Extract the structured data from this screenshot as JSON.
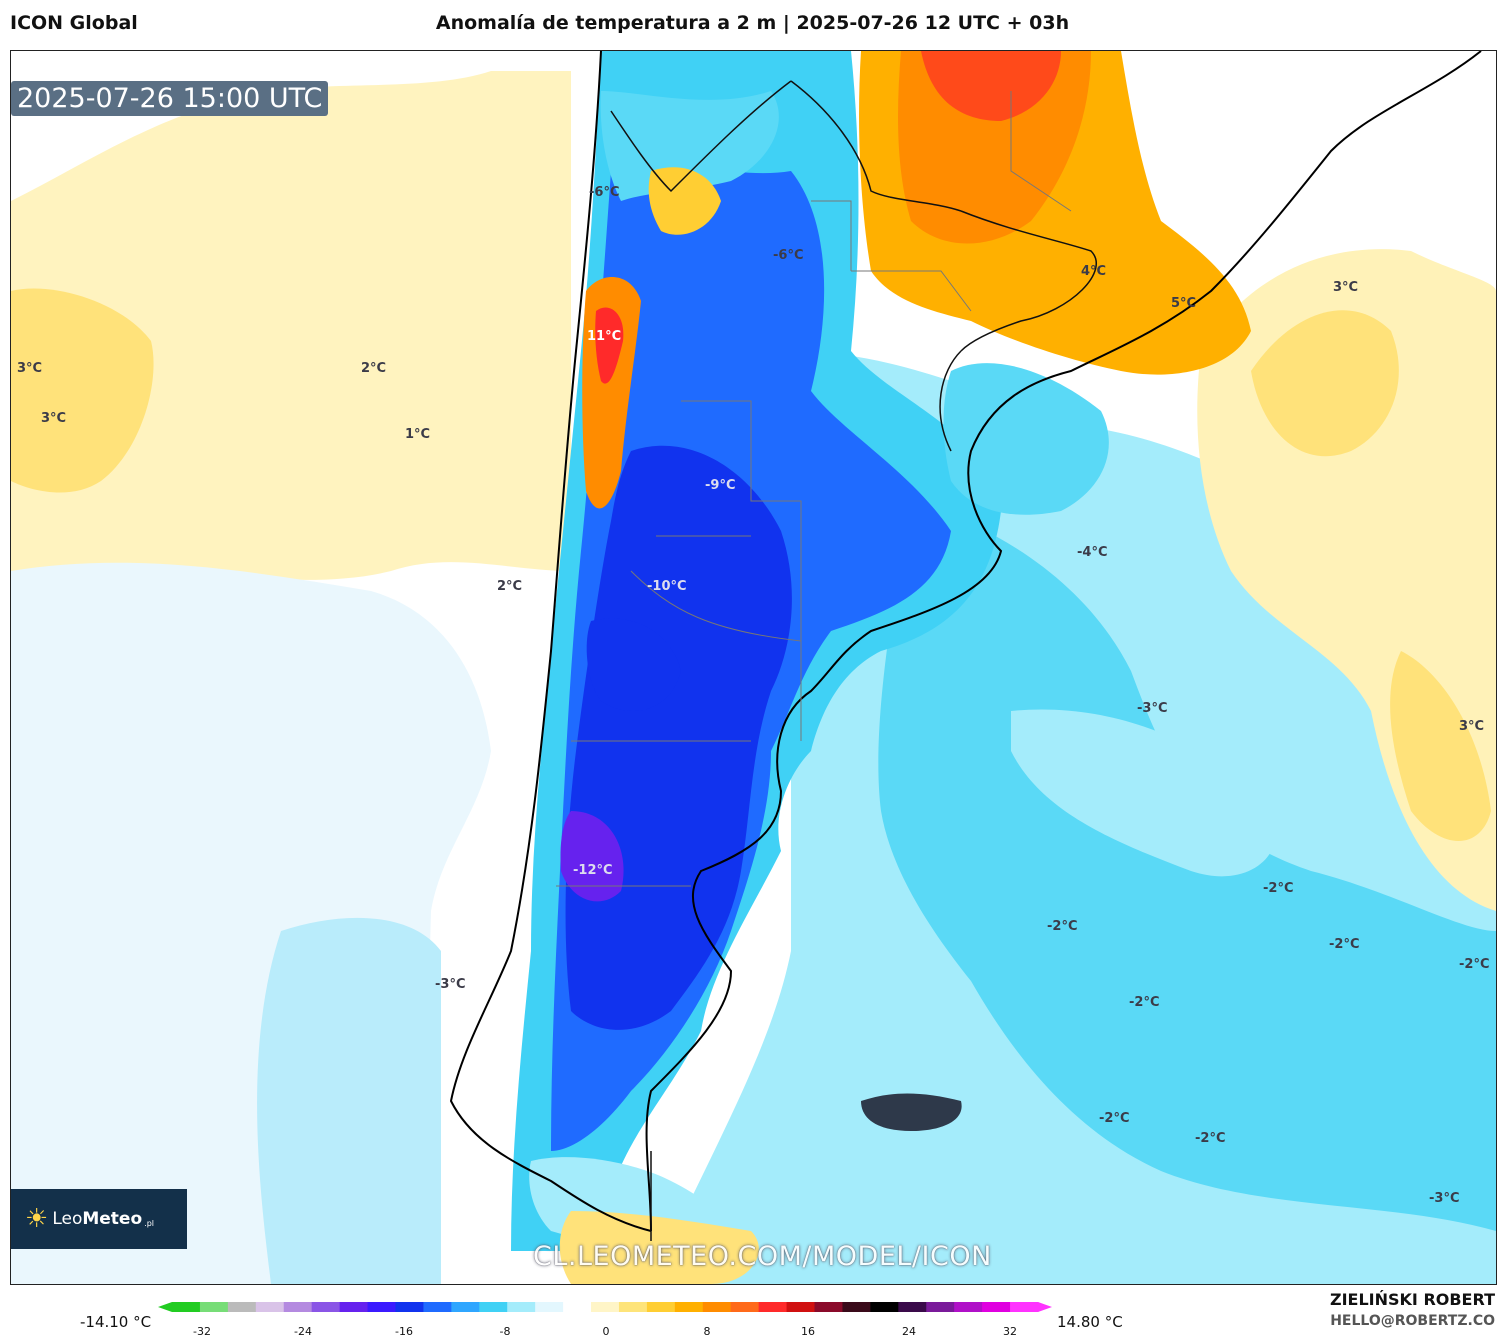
{
  "header": {
    "model": "ICON Global",
    "title": "Anomalía de temperatura a 2 m | 2025-07-26 12 UTC + 03h"
  },
  "map": {
    "timestamp": "2025-07-26 15:00 UTC",
    "watermark": "CL.LEOMETEO.COM/MODEL/ICON",
    "logo": {
      "name_light": "Leo",
      "name_bold": "Meteo",
      "suffix": ".pl"
    },
    "labels": [
      "-6°C",
      "-6°C",
      "11°C",
      "3°C",
      "3°C",
      "2°C",
      "1°C",
      "-9°C",
      "-10°C",
      "2°C",
      "-12°C",
      "-3°C",
      "4°C",
      "5°C",
      "3°C",
      "-4°C",
      "-3°C",
      "3°C",
      "-2°C",
      "-2°C",
      "-2°C",
      "-2°C",
      "-2°C",
      "-2°C",
      "-2°C",
      "-3°C"
    ]
  },
  "colorbar": {
    "min_label": "-14.10 °C",
    "max_label": "14.80 °C",
    "ticks": [
      "-32",
      "-24",
      "-16",
      "-8",
      "0",
      "8",
      "16",
      "24",
      "32"
    ],
    "colors": [
      "#22cc22",
      "#77dd77",
      "#bbbbbb",
      "#d9c3e8",
      "#b48ae0",
      "#8a55e6",
      "#6622ee",
      "#3b1aff",
      "#1133ee",
      "#1f6bff",
      "#2fa6ff",
      "#40d1f5",
      "#a4ecfb",
      "#e3f7fe",
      "#ffffff",
      "#fff5c7",
      "#fee47a",
      "#ffce33",
      "#ffb000",
      "#ff8c00",
      "#ff6a1a",
      "#ff2a2a",
      "#d01010",
      "#8a0a2a",
      "#3a0a1a",
      "#000000",
      "#3a0a4a",
      "#7a1a9a",
      "#b010c8",
      "#e000e0",
      "#ff33ff"
    ]
  },
  "author": {
    "name": "ZIELIŃSKI ROBERT",
    "email": "HELLO@ROBERTZ.CO"
  }
}
